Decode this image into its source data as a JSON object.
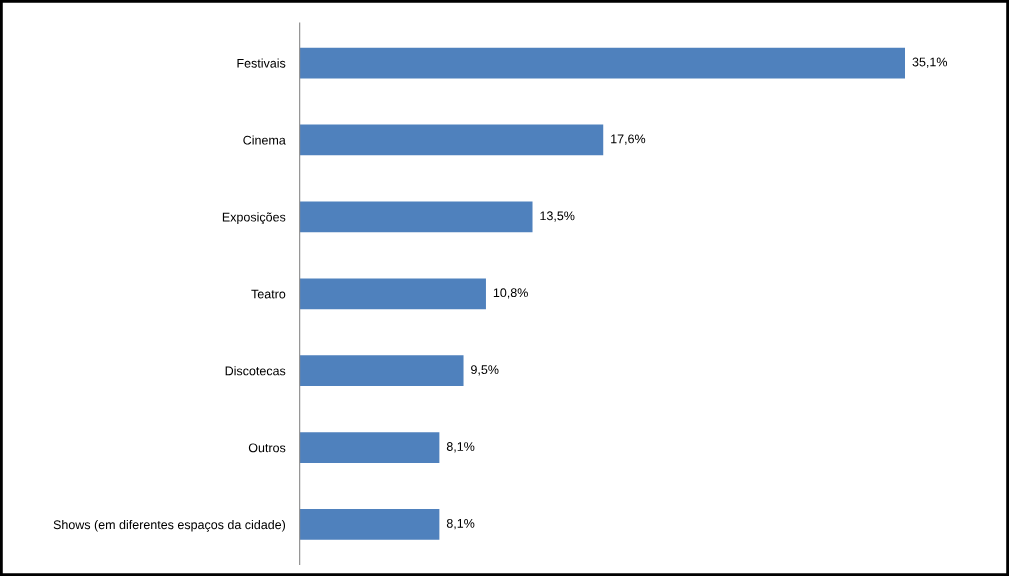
{
  "chart_data": {
    "type": "bar",
    "orientation": "horizontal",
    "categories": [
      "Festivais",
      "Cinema",
      "Exposições",
      "Teatro",
      "Discotecas",
      "Outros",
      "Shows (em diferentes espaços da cidade)"
    ],
    "values": [
      35.1,
      17.6,
      13.5,
      10.8,
      9.5,
      8.1,
      8.1
    ],
    "value_labels": [
      "35,1%",
      "17,6%",
      "13,5%",
      "10,8%",
      "9,5%",
      "8,1%",
      "8,1%"
    ],
    "color": "#4f81bd",
    "grid": false,
    "legend": false
  }
}
